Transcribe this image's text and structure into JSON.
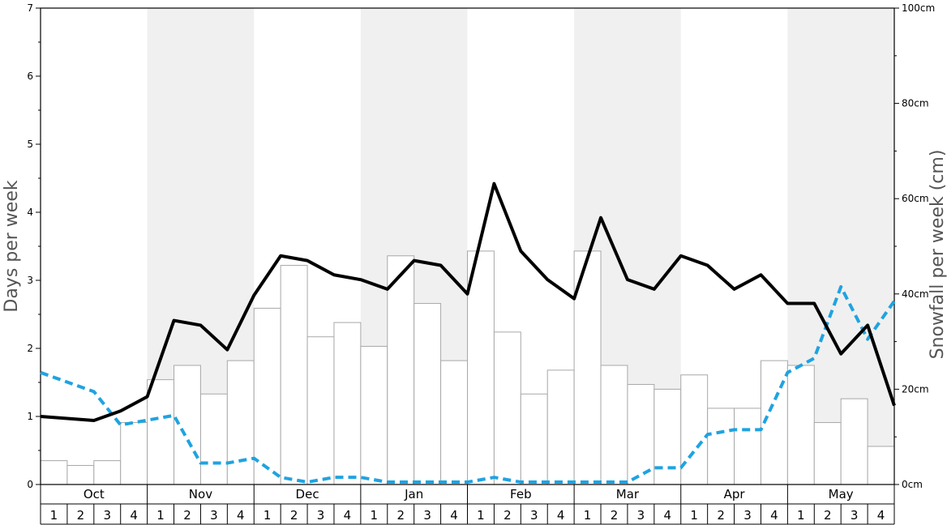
{
  "chart_data": {
    "type": "bar",
    "left_axis": {
      "label": "Days per week",
      "ylim": [
        0,
        7
      ],
      "ticks": [
        "0",
        "1",
        "2",
        "3",
        "4",
        "5",
        "6",
        "7"
      ]
    },
    "right_axis": {
      "label": "Snowfall per week (cm)",
      "ylim": [
        0,
        100
      ],
      "ticks": [
        "0cm",
        "20cm",
        "40cm",
        "60cm",
        "80cm",
        "100cm"
      ]
    },
    "months": [
      "Oct",
      "Nov",
      "Dec",
      "Jan",
      "Feb",
      "Mar",
      "Apr",
      "May"
    ],
    "weeks": [
      "1",
      "2",
      "3",
      "4"
    ],
    "grid": false,
    "series": [
      {
        "type": "bar",
        "axis": "right",
        "values": [
          5,
          4,
          5,
          13,
          22,
          25,
          19,
          26,
          37,
          46,
          31,
          34,
          29,
          48,
          38,
          26,
          49,
          32,
          19,
          24,
          49,
          25,
          21,
          20,
          23,
          16,
          16,
          26,
          25,
          13,
          18,
          8
        ]
      },
      {
        "type": "line",
        "axis": "left",
        "style": "solid",
        "color": "#000000",
        "values": [
          1.0,
          0.97,
          0.94,
          1.08,
          1.29,
          2.41,
          2.34,
          1.98,
          2.78,
          3.36,
          3.29,
          3.08,
          3.01,
          2.87,
          3.29,
          3.22,
          2.8,
          4.42,
          3.43,
          3.01,
          2.73,
          3.92,
          3.01,
          2.87,
          3.36,
          3.22,
          2.87,
          3.08,
          2.66,
          2.66,
          1.92,
          2.34,
          1.16
        ]
      },
      {
        "type": "line",
        "axis": "right",
        "style": "dashed",
        "color": "#1fa3e0",
        "values": [
          23.5,
          21.5,
          19.5,
          12.5,
          13.5,
          14.5,
          4.5,
          4.5,
          5.5,
          1.5,
          0.5,
          1.5,
          1.5,
          0.5,
          0.5,
          0.5,
          0.5,
          1.5,
          0.5,
          0.5,
          0.5,
          0.5,
          0.5,
          3.5,
          3.5,
          10.5,
          11.5,
          11.5,
          23.5,
          26.5,
          41.5,
          30.5,
          38.5
        ]
      }
    ]
  }
}
